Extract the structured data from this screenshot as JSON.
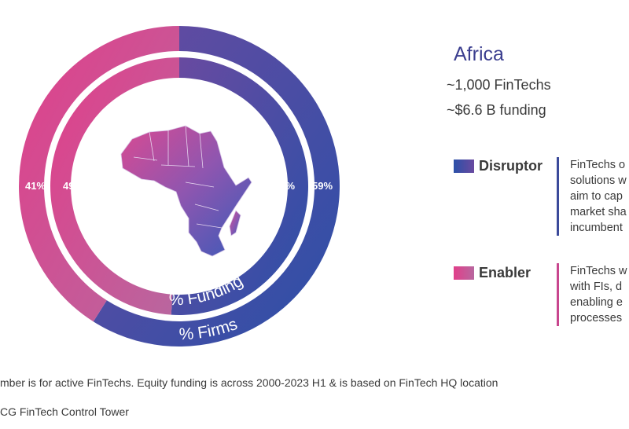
{
  "chart_data": {
    "type": "pie",
    "categories": [
      "Disruptor",
      "Enabler"
    ],
    "series": [
      {
        "name": "% Firms",
        "values": [
          59,
          41
        ]
      },
      {
        "name": "% Funding",
        "values": [
          51,
          49
        ]
      }
    ],
    "data_labels": {
      "firms": [
        "59%",
        "41%"
      ],
      "funding": [
        "51%",
        "49%"
      ]
    },
    "title": "Africa",
    "colors": {
      "disruptor_start": "#2b50a8",
      "disruptor_end": "#6a4aa0",
      "enabler_start": "#e13f8a",
      "enabler_end": "#b8679f"
    }
  },
  "stats": {
    "count": "~1,000 FinTechs",
    "funding": "~$6.6 B funding"
  },
  "legend": [
    {
      "label": "Disruptor",
      "lines": [
        "FinTechs o",
        "solutions w",
        "aim to cap",
        "market sha",
        "incumbent"
      ],
      "color": "#3b4a9a"
    },
    {
      "label": "Enabler",
      "lines": [
        "FinTechs w",
        "with FIs, d",
        "enabling e",
        "processes"
      ],
      "color": "#c8468e"
    }
  ],
  "map_icon": "africa-map-icon",
  "footnotes": [
    "mber is for active FinTechs. Equity funding is across 2000-2023 H1 & is based on FinTech HQ location",
    "CG FinTech Control Tower"
  ]
}
